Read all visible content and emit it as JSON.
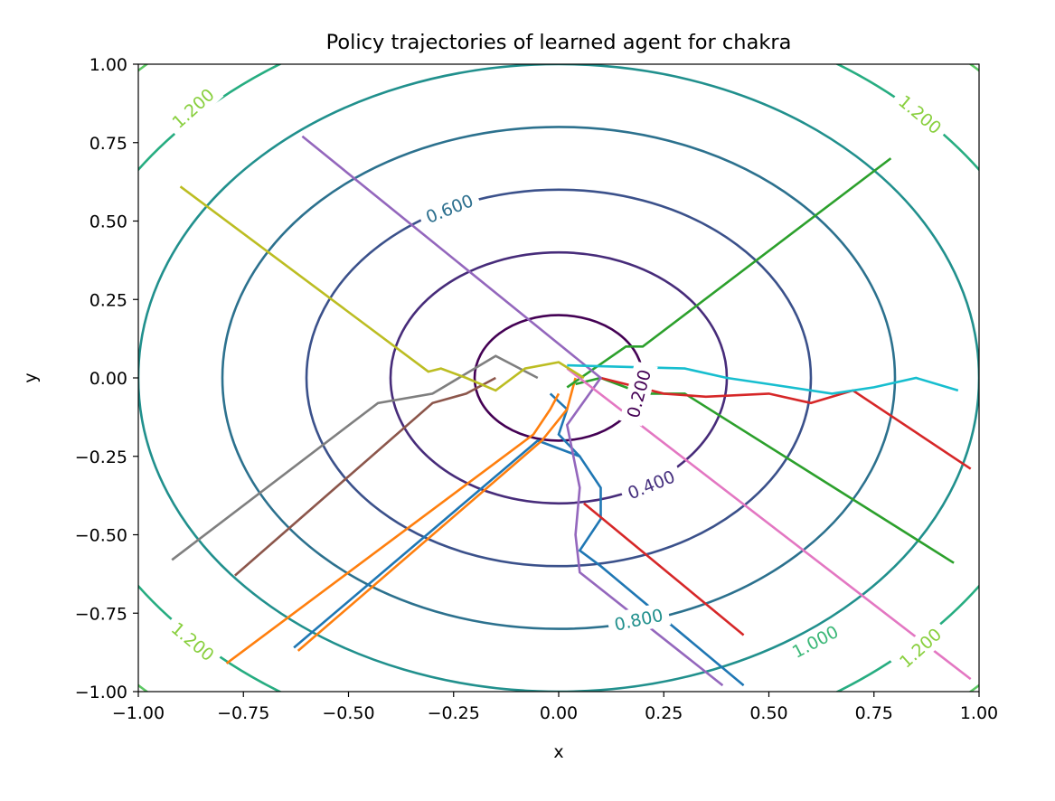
{
  "chart_data": {
    "type": "line",
    "title": "Policy trajectories of learned agent for chakra",
    "xlabel": "x",
    "ylabel": "y",
    "xlim": [
      -1.0,
      1.0
    ],
    "ylim": [
      -1.0,
      1.0
    ],
    "xticks": [
      "−1.00",
      "−0.75",
      "−0.50",
      "−0.25",
      "0.00",
      "0.25",
      "0.50",
      "0.75",
      "1.00"
    ],
    "yticks": [
      "−1.00",
      "−0.75",
      "−0.50",
      "−0.25",
      "0.00",
      "0.25",
      "0.50",
      "0.75",
      "1.00"
    ],
    "grid": false,
    "background_contours": {
      "function": "sqrt(x^2 + y^2)",
      "levels": [
        {
          "value": 0.2,
          "label": "0.200",
          "color": "#440154"
        },
        {
          "value": 0.4,
          "label": "0.400",
          "color": "#472c7a"
        },
        {
          "value": 0.6,
          "label": "0.600",
          "color": "#3b518b"
        },
        {
          "value": 0.8,
          "label": "0.800",
          "color": "#2c718e"
        },
        {
          "value": 1.0,
          "label": "1.000",
          "color": "#21908d"
        },
        {
          "value": 1.2,
          "label": "1.200",
          "color": "#27ad81"
        },
        {
          "value": 1.4,
          "label": "",
          "color": "#5cc863"
        }
      ],
      "label_colors_override": {
        "1.000": "#3cb878",
        "1.200": "#88cf3d",
        "0.800": "#21908d",
        "0.600": "#2c6f8e",
        "0.400": "#46307e",
        "0.200": "#440154"
      }
    },
    "series": [
      {
        "color": "#1f77b4",
        "points": [
          [
            -0.63,
            -0.86
          ],
          [
            -0.05,
            -0.2
          ],
          [
            0.05,
            -0.25
          ],
          [
            0.1,
            -0.35
          ],
          [
            0.1,
            -0.45
          ],
          [
            0.05,
            -0.55
          ],
          [
            0.1,
            -0.6
          ],
          [
            0.44,
            -0.98
          ]
        ]
      },
      {
        "color": "#1f77b4",
        "points": [
          [
            -0.02,
            -0.05
          ],
          [
            0.02,
            -0.1
          ],
          [
            0.0,
            -0.18
          ],
          [
            0.05,
            -0.25
          ]
        ]
      },
      {
        "color": "#ff7f0e",
        "points": [
          [
            -0.79,
            -0.91
          ],
          [
            -0.06,
            -0.18
          ],
          [
            -0.02,
            -0.1
          ],
          [
            0.0,
            -0.05
          ]
        ]
      },
      {
        "color": "#ff7f0e",
        "points": [
          [
            -0.62,
            -0.87
          ],
          [
            -0.04,
            -0.2
          ],
          [
            0.02,
            -0.1
          ],
          [
            0.04,
            0.0
          ]
        ]
      },
      {
        "color": "#2ca02c",
        "points": [
          [
            0.02,
            -0.03
          ],
          [
            0.16,
            0.1
          ],
          [
            0.2,
            0.1
          ],
          [
            0.79,
            0.7
          ]
        ]
      },
      {
        "color": "#2ca02c",
        "points": [
          [
            0.04,
            -0.02
          ],
          [
            0.1,
            0.0
          ],
          [
            0.2,
            -0.05
          ],
          [
            0.3,
            -0.05
          ],
          [
            0.94,
            -0.59
          ]
        ]
      },
      {
        "color": "#d62728",
        "points": [
          [
            0.06,
            -0.4
          ],
          [
            0.44,
            -0.82
          ]
        ]
      },
      {
        "color": "#d62728",
        "points": [
          [
            0.1,
            0.0
          ],
          [
            0.25,
            -0.05
          ],
          [
            0.35,
            -0.06
          ],
          [
            0.5,
            -0.05
          ],
          [
            0.6,
            -0.08
          ],
          [
            0.7,
            -0.04
          ],
          [
            0.98,
            -0.29
          ]
        ]
      },
      {
        "color": "#9467bd",
        "points": [
          [
            -0.61,
            0.77
          ],
          [
            0.1,
            0.0
          ],
          [
            0.02,
            -0.15
          ],
          [
            0.05,
            -0.35
          ],
          [
            0.04,
            -0.5
          ],
          [
            0.05,
            -0.62
          ],
          [
            0.39,
            -0.98
          ]
        ]
      },
      {
        "color": "#8c564b",
        "points": [
          [
            -0.77,
            -0.63
          ],
          [
            -0.3,
            -0.08
          ],
          [
            -0.22,
            -0.05
          ],
          [
            -0.15,
            0.0
          ]
        ]
      },
      {
        "color": "#e377c2",
        "points": [
          [
            0.02,
            0.03
          ],
          [
            0.98,
            -0.96
          ]
        ]
      },
      {
        "color": "#7f7f7f",
        "points": [
          [
            -0.92,
            -0.58
          ],
          [
            -0.43,
            -0.08
          ],
          [
            -0.3,
            -0.05
          ],
          [
            -0.15,
            0.07
          ],
          [
            -0.05,
            0.0
          ]
        ]
      },
      {
        "color": "#bcbd22",
        "points": [
          [
            -0.9,
            0.61
          ],
          [
            -0.31,
            0.02
          ],
          [
            -0.28,
            0.03
          ],
          [
            -0.22,
            0.0
          ],
          [
            -0.15,
            -0.04
          ],
          [
            -0.08,
            0.03
          ],
          [
            0.0,
            0.05
          ],
          [
            0.06,
            0.0
          ]
        ]
      },
      {
        "color": "#17becf",
        "points": [
          [
            0.02,
            0.04
          ],
          [
            0.3,
            0.03
          ],
          [
            0.4,
            0.0
          ],
          [
            0.5,
            -0.02
          ],
          [
            0.65,
            -0.05
          ],
          [
            0.75,
            -0.03
          ],
          [
            0.85,
            0.0
          ],
          [
            0.95,
            -0.04
          ]
        ]
      }
    ],
    "contour_labels": [
      {
        "text": "0.200",
        "x": 0.19,
        "y": -0.05,
        "rotation": -75,
        "level": 0.2
      },
      {
        "text": "0.400",
        "x": 0.22,
        "y": -0.34,
        "rotation": -22,
        "level": 0.4
      },
      {
        "text": "0.600",
        "x": -0.26,
        "y": 0.54,
        "rotation": -22,
        "level": 0.6
      },
      {
        "text": "0.800",
        "x": 0.19,
        "y": -0.77,
        "rotation": -12,
        "level": 0.8
      },
      {
        "text": "1.000",
        "x": 0.61,
        "y": -0.84,
        "rotation": -28,
        "level": 1.0
      },
      {
        "text": "1.200",
        "x": -0.87,
        "y": 0.86,
        "rotation": -42,
        "level": 1.2
      },
      {
        "text": "1.200",
        "x": 0.86,
        "y": 0.84,
        "rotation": 40,
        "level": 1.2
      },
      {
        "text": "1.200",
        "x": -0.87,
        "y": -0.84,
        "rotation": 40,
        "level": 1.2
      },
      {
        "text": "1.200",
        "x": 0.86,
        "y": -0.86,
        "rotation": -42,
        "level": 1.2
      }
    ]
  }
}
